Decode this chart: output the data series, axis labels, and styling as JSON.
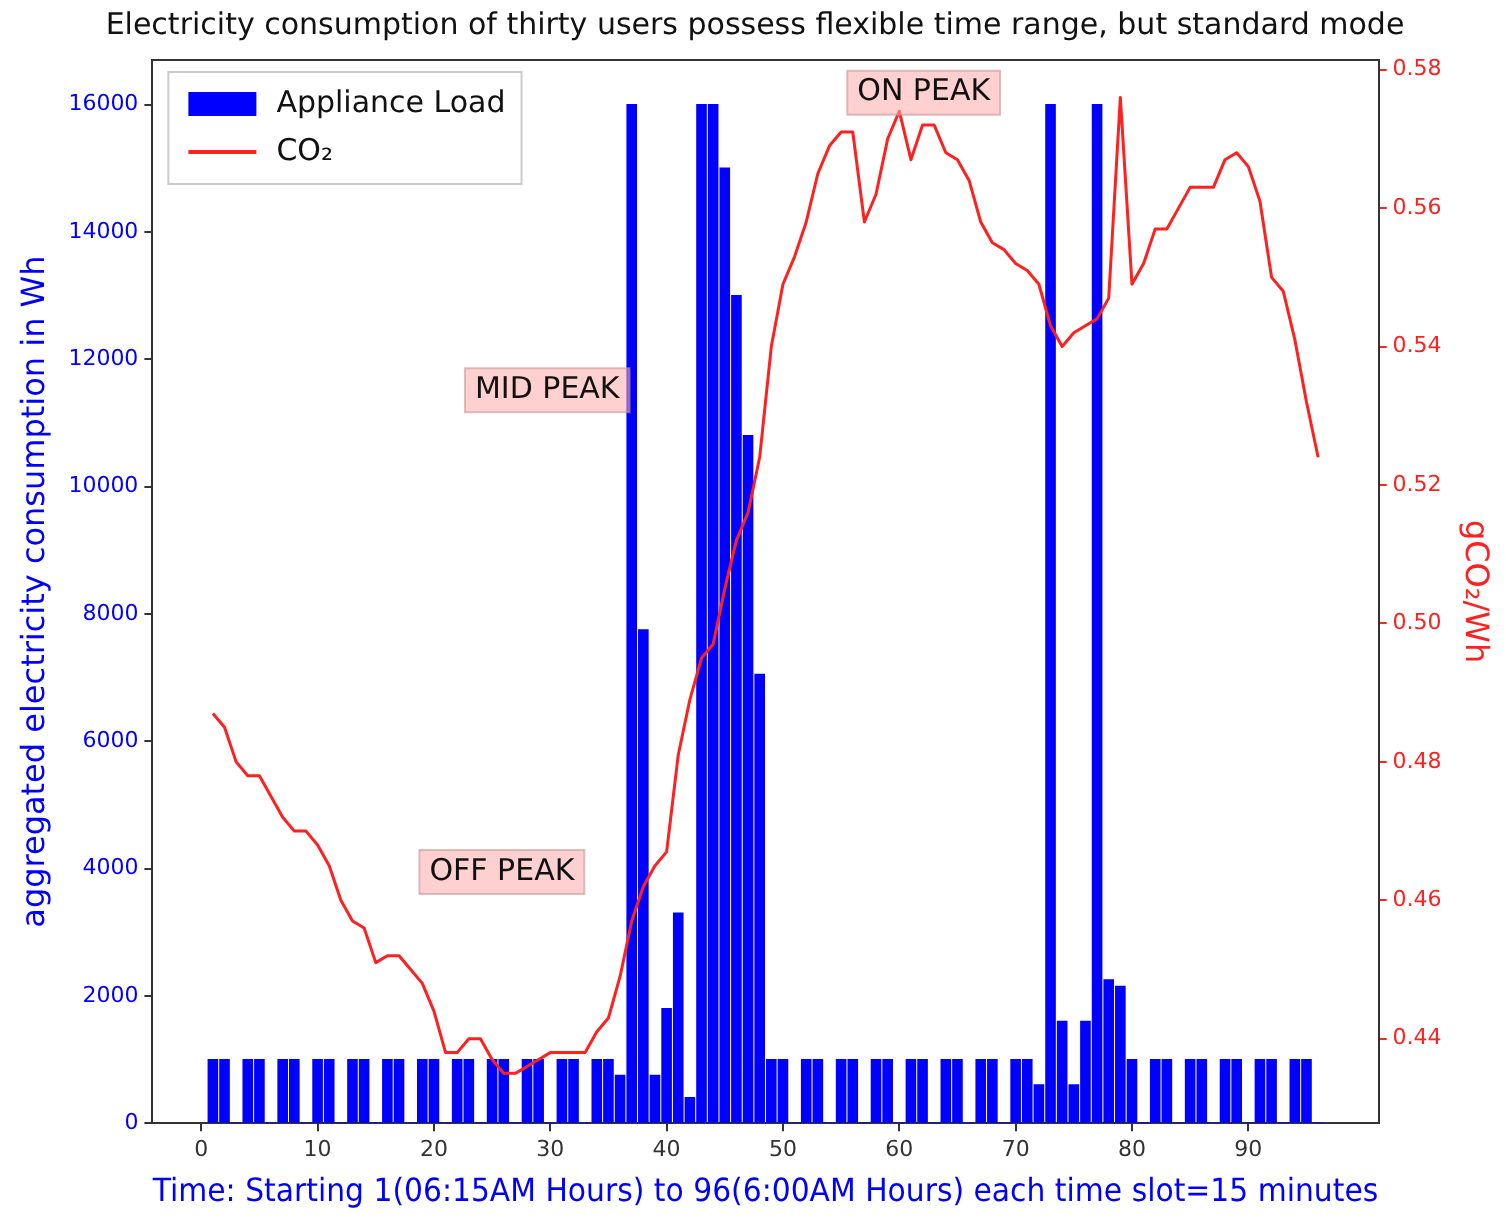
{
  "chart_data": {
    "type": "bar",
    "title": "Electricity consumption of thirty users possess flexible time range, but standard mode",
    "xlabel": "Time: Starting 1(06:15AM Hours) to 96(6:00AM Hours) each time slot=15 minutes",
    "ylabel": "aggregated electricity consumption in Wh",
    "y2label": "gCO₂/Wh",
    "series": [
      {
        "name": "Appliance Load",
        "color": "#0000ff",
        "x": [
          1,
          2,
          3,
          4,
          5,
          6,
          7,
          8,
          9,
          10,
          11,
          12,
          13,
          14,
          15,
          16,
          17,
          18,
          19,
          20,
          21,
          22,
          23,
          24,
          25,
          26,
          27,
          28,
          29,
          30,
          31,
          32,
          33,
          34,
          35,
          36,
          37,
          38,
          39,
          40,
          41,
          42,
          43,
          44,
          45,
          46,
          47,
          48,
          49,
          50,
          51,
          52,
          53,
          54,
          55,
          56,
          57,
          58,
          59,
          60,
          61,
          62,
          63,
          64,
          65,
          66,
          67,
          68,
          69,
          70,
          71,
          72,
          73,
          74,
          75,
          76,
          77,
          78,
          79,
          80,
          81,
          82,
          83,
          84,
          85,
          86,
          87,
          88,
          89,
          90,
          91,
          92,
          93,
          94,
          95,
          96
        ],
        "values": [
          1000,
          1000,
          0,
          1000,
          1000,
          0,
          1000,
          1000,
          0,
          1000,
          1000,
          0,
          1000,
          1000,
          0,
          1000,
          1000,
          0,
          1000,
          1000,
          0,
          1000,
          1000,
          0,
          1000,
          1000,
          0,
          1000,
          1000,
          0,
          1000,
          1000,
          0,
          1000,
          1000,
          750,
          16000,
          7750,
          750,
          1800,
          3300,
          400,
          16000,
          16000,
          15000,
          13000,
          10800,
          7050,
          1000,
          1000,
          0,
          1000,
          1000,
          0,
          1000,
          1000,
          0,
          1000,
          1000,
          0,
          1000,
          1000,
          0,
          1000,
          1000,
          0,
          1000,
          1000,
          0,
          1000,
          1000,
          600,
          16000,
          1600,
          600,
          1600,
          16000,
          2250,
          2150,
          1000,
          0,
          1000,
          1000,
          0,
          1000,
          1000,
          0,
          1000,
          1000,
          0,
          1000,
          1000,
          0,
          1000,
          1000,
          0
        ]
      },
      {
        "name": "CO₂",
        "type": "line",
        "axis": "y2",
        "color": "#ff2020",
        "x": [
          1,
          2,
          3,
          4,
          5,
          6,
          7,
          8,
          9,
          10,
          11,
          12,
          13,
          14,
          15,
          16,
          17,
          18,
          19,
          20,
          21,
          22,
          23,
          24,
          25,
          26,
          27,
          28,
          29,
          30,
          31,
          32,
          33,
          34,
          35,
          36,
          37,
          38,
          39,
          40,
          41,
          42,
          43,
          44,
          45,
          46,
          47,
          48,
          49,
          50,
          51,
          52,
          53,
          54,
          55,
          56,
          57,
          58,
          59,
          60,
          61,
          62,
          63,
          64,
          65,
          66,
          67,
          68,
          69,
          70,
          71,
          72,
          73,
          74,
          75,
          76,
          77,
          78,
          79,
          80,
          81,
          82,
          83,
          84,
          85,
          86,
          87,
          88,
          89,
          90,
          91,
          92,
          93,
          94,
          95,
          96
        ],
        "values": [
          0.487,
          0.485,
          0.48,
          0.478,
          0.478,
          0.475,
          0.472,
          0.47,
          0.47,
          0.468,
          0.465,
          0.46,
          0.457,
          0.456,
          0.451,
          0.452,
          0.452,
          0.45,
          0.448,
          0.444,
          0.438,
          0.438,
          0.44,
          0.44,
          0.437,
          0.435,
          0.435,
          0.436,
          0.437,
          0.438,
          0.438,
          0.438,
          0.438,
          0.441,
          0.443,
          0.449,
          0.457,
          0.462,
          0.465,
          0.467,
          0.481,
          0.489,
          0.495,
          0.497,
          0.505,
          0.512,
          0.516,
          0.524,
          0.54,
          0.549,
          0.553,
          0.558,
          0.565,
          0.569,
          0.571,
          0.571,
          0.558,
          0.562,
          0.57,
          0.574,
          0.567,
          0.572,
          0.572,
          0.568,
          0.567,
          0.564,
          0.558,
          0.555,
          0.554,
          0.552,
          0.551,
          0.549,
          0.543,
          0.54,
          0.542,
          0.543,
          0.544,
          0.547,
          0.576,
          0.549,
          0.552,
          0.557,
          0.557,
          0.56,
          0.563,
          0.563,
          0.563,
          0.567,
          0.568,
          0.566,
          0.561,
          0.55,
          0.548,
          0.541,
          0.532,
          0.524
        ]
      }
    ],
    "xlim": [
      -4.2,
      101.2
    ],
    "xticks": [
      0,
      10,
      20,
      30,
      40,
      50,
      60,
      70,
      80,
      90
    ],
    "ylim": [
      0,
      16700
    ],
    "yticks": [
      0,
      2000,
      4000,
      6000,
      8000,
      10000,
      12000,
      14000,
      16000
    ],
    "y2lim": [
      0.4278,
      0.5814
    ],
    "y2ticks": [
      {
        "value": 0.44,
        "label": "0.44"
      },
      {
        "value": 0.46,
        "label": "0.46"
      },
      {
        "value": 0.48,
        "label": "0.48"
      },
      {
        "value": 0.5,
        "label": "0.50"
      },
      {
        "value": 0.52,
        "label": "0.52"
      },
      {
        "value": 0.54,
        "label": "0.54"
      },
      {
        "value": 0.56,
        "label": "0.56"
      },
      {
        "value": 0.58,
        "label": "0.58"
      }
    ],
    "annotations": [
      "OFF PEAK",
      "MID PEAK",
      "ON PEAK"
    ],
    "legend": "top left",
    "grid": false,
    "marker": "none",
    "line_style": "solid"
  }
}
